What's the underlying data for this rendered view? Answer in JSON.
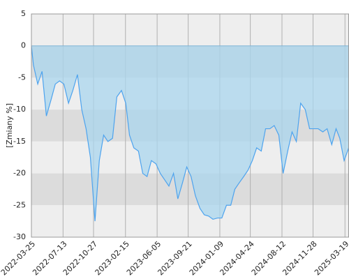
{
  "chart_data": {
    "type": "line",
    "y_label": "[Zmiany %]",
    "x": [
      "2022-03-25",
      "2022-04-01",
      "2022-04-16",
      "2022-05-01",
      "2022-05-16",
      "2022-06-01",
      "2022-06-16",
      "2022-07-01",
      "2022-07-16",
      "2022-08-01",
      "2022-08-16",
      "2022-09-01",
      "2022-09-16",
      "2022-10-01",
      "2022-10-16",
      "2022-11-01",
      "2022-11-16",
      "2022-12-01",
      "2022-12-16",
      "2023-01-01",
      "2023-01-16",
      "2023-02-01",
      "2023-02-16",
      "2023-03-01",
      "2023-03-16",
      "2023-04-01",
      "2023-04-16",
      "2023-05-01",
      "2023-05-16",
      "2023-06-01",
      "2023-06-16",
      "2023-07-01",
      "2023-07-16",
      "2023-08-01",
      "2023-08-16",
      "2023-09-01",
      "2023-09-16",
      "2023-10-01",
      "2023-10-16",
      "2023-11-01",
      "2023-11-16",
      "2023-12-01",
      "2023-12-16",
      "2024-01-01",
      "2024-01-16",
      "2024-02-01",
      "2024-02-16",
      "2024-03-01",
      "2024-03-16",
      "2024-04-01",
      "2024-04-16",
      "2024-05-01",
      "2024-05-16",
      "2024-06-01",
      "2024-06-16",
      "2024-07-01",
      "2024-07-16",
      "2024-08-01",
      "2024-08-16",
      "2024-09-01",
      "2024-09-16",
      "2024-10-01",
      "2024-10-16",
      "2024-11-01",
      "2024-11-16",
      "2024-12-01",
      "2024-12-16",
      "2025-01-01",
      "2025-01-16",
      "2025-02-01",
      "2025-02-16",
      "2025-03-01",
      "2025-03-16",
      "2025-04-01"
    ],
    "series": [
      {
        "color": "#4da3ee",
        "fill": "#a9d6ee",
        "values": [
          0,
          -3,
          -6,
          -4,
          -11,
          -8.5,
          -6,
          -5.5,
          -6,
          -9,
          -7,
          -4.5,
          -10,
          -13,
          -17.5,
          -27.5,
          -18,
          -14,
          -15,
          -14.5,
          -8,
          -7,
          -9,
          -14,
          -16,
          -16.5,
          -20,
          -20.5,
          -18,
          -18.5,
          -20,
          -21,
          -22,
          -20,
          -24,
          -21.5,
          -19,
          -20.5,
          -23.5,
          -25.5,
          -26.5,
          -26.7,
          -27.2,
          -27,
          -27,
          -25,
          -25,
          -22.5,
          -21.5,
          -20.5,
          -19.5,
          -18,
          -16,
          -16.5,
          -13,
          -13,
          -12.5,
          -14,
          -20,
          -16.5,
          -13.5,
          -15,
          -9,
          -10,
          -13,
          -13,
          -13,
          -13.5,
          -13,
          -15.5,
          -13,
          -14.5,
          -18,
          -16
        ]
      }
    ],
    "xlim": [
      "2022-03-25",
      "2025-04-02"
    ],
    "xticks": [
      "2022-03-25",
      "2022-07-13",
      "2022-10-27",
      "2023-02-15",
      "2023-06-05",
      "2023-09-21",
      "2024-01-09",
      "2024-04-24",
      "2024-08-12",
      "2024-11-28",
      "2025-03-19"
    ],
    "ylim": [
      -30,
      5
    ],
    "yticks": [
      5,
      0,
      -5,
      -10,
      -15,
      -20,
      -25,
      -30
    ],
    "grid": true
  }
}
